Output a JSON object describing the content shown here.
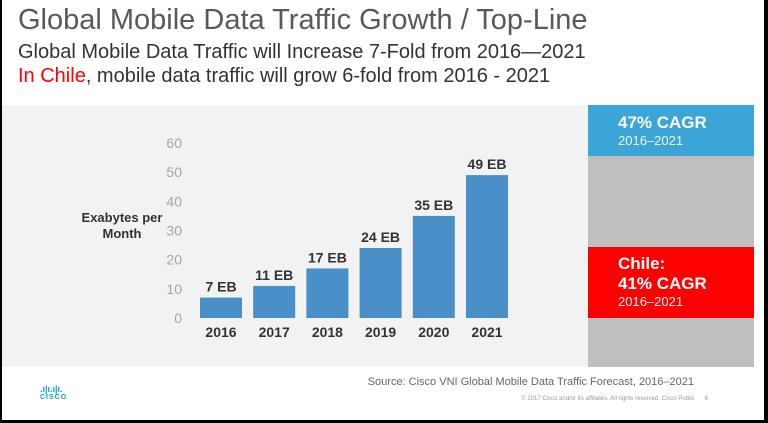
{
  "title": "Global Mobile Data Traffic Growth / Top-Line",
  "subtitle": "Global Mobile Data Traffic will Increase 7-Fold from 2016—2021",
  "chile_line": {
    "highlight": "In Chile",
    "rest": ", mobile data traffic will grow 6-fold from 2016 - 2021"
  },
  "global_box": {
    "headline": "47% CAGR",
    "period": "2016–2021",
    "color": "#3ba5d8"
  },
  "chile_box": {
    "line1": "Chile:",
    "headline": "41% CAGR",
    "period": "2016–2021",
    "color": "#ff0000"
  },
  "chart_data": {
    "type": "bar",
    "categories": [
      "2016",
      "2017",
      "2018",
      "2019",
      "2020",
      "2021"
    ],
    "values": [
      7,
      11,
      17,
      24,
      35,
      49
    ],
    "labels": [
      "7 EB",
      "11 EB",
      "17 EB",
      "24 EB",
      "35 EB",
      "49 EB"
    ],
    "ylabel": "Exabytes per Month",
    "ylim": [
      0,
      60
    ],
    "yticks": [
      0,
      10,
      20,
      30,
      40,
      50,
      60
    ],
    "color": "#4a90c8",
    "grid": false
  },
  "footer": {
    "source": "Source: Cisco VNI Global Mobile Data Traffic Forecast, 2016–2021",
    "copyright": "© 2017  Cisco and/or its affiliates. All rights reserved.   Cisco Public",
    "page": "6",
    "logo": "CISCO"
  }
}
